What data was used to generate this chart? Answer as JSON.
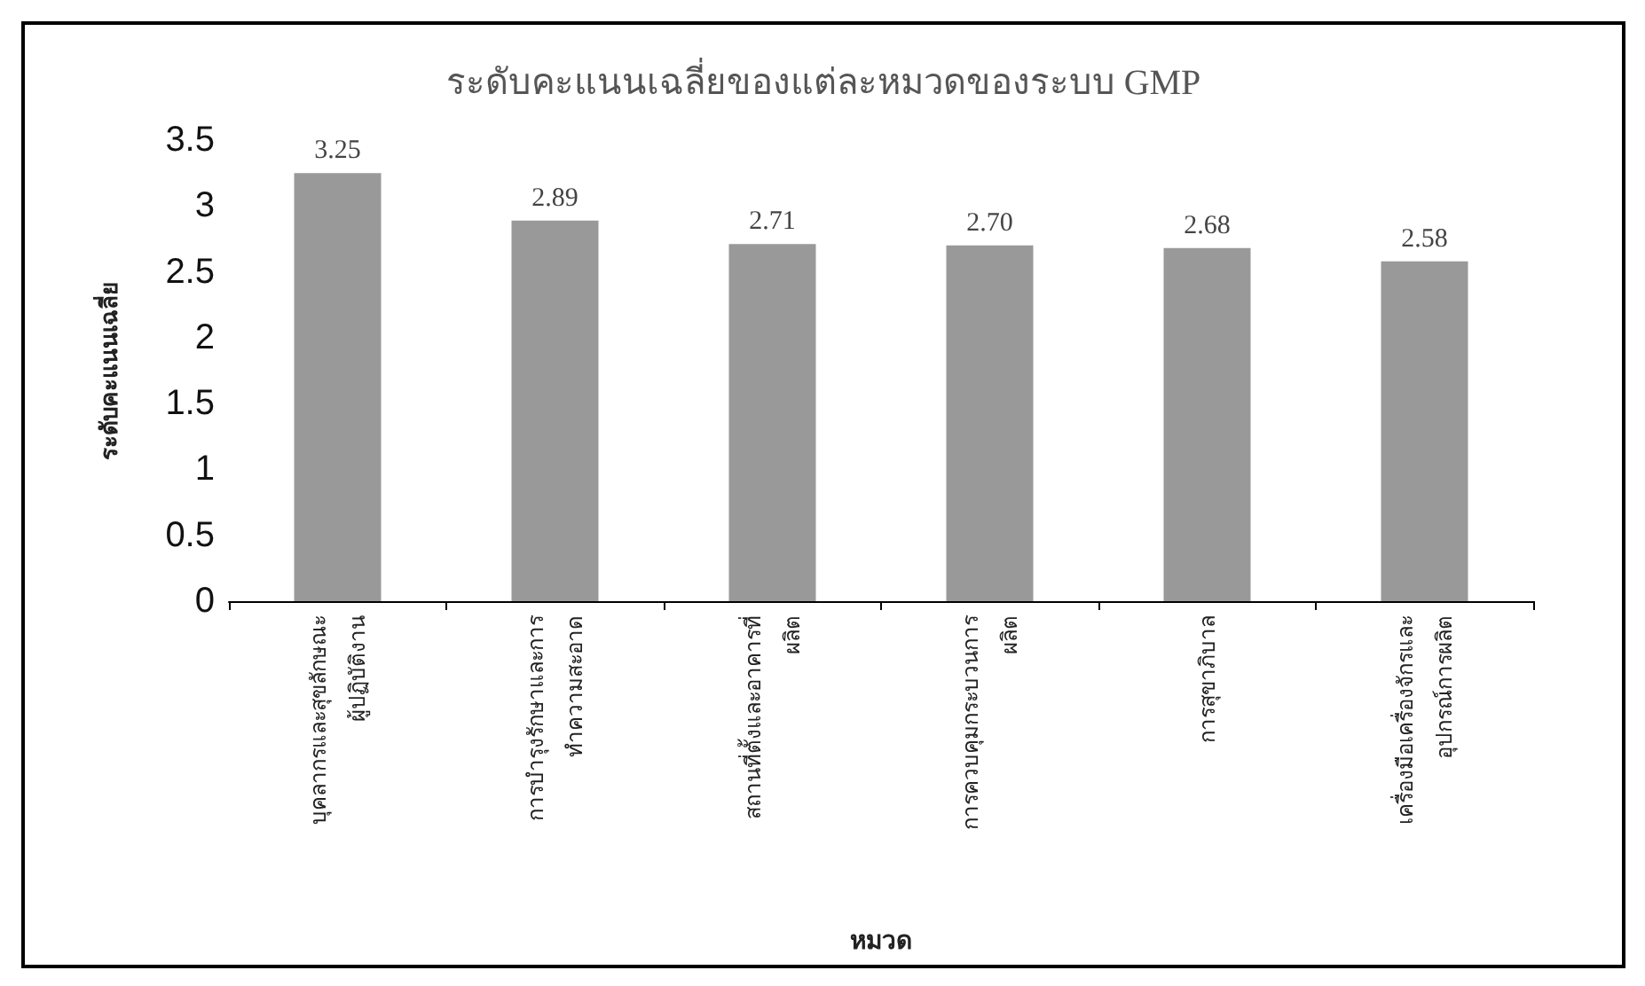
{
  "chart_data": {
    "type": "bar",
    "title": "ระดับคะแนนเฉลี่ยของแต่ละหมวดของระบบ GMP",
    "xlabel": "หมวด",
    "ylabel": "ระดับคะแนนเฉลี่ย",
    "categories": [
      "บุคลากรและสุขลักษณะ\nผู้ปฏิบัติงาน",
      "การบำรุงรักษาและการ\nทำความสะอาด",
      "สถานที่ตั้งและอาคารที่\nผลิต",
      "การควบคุมกระบวนการ\nผลิต",
      "การสุขาภิบาล",
      "เครื่องมือเครื่องจักรและ\nอุปกรณ์การผลิต"
    ],
    "values": [
      3.25,
      2.89,
      2.71,
      2.7,
      2.68,
      2.58
    ],
    "value_labels": [
      "3.25",
      "2.89",
      "2.71",
      "2.70",
      "2.68",
      "2.58"
    ],
    "color": "#999999",
    "ylim": [
      0,
      3.5
    ],
    "yticks": [
      0,
      0.5,
      1,
      1.5,
      2,
      2.5,
      3,
      3.5
    ],
    "grid": false
  }
}
